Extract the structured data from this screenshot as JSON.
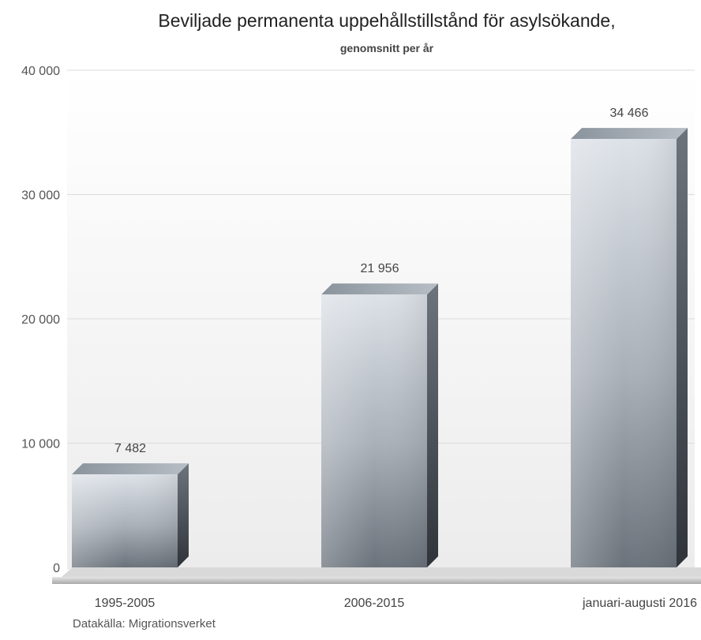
{
  "chart_data": {
    "type": "bar",
    "title": "Beviljade permanenta uppehållstillstånd för asylsökande,",
    "subtitle": "genomsnitt per år",
    "categories": [
      "1995-2005",
      "2006-2015",
      "januari-augusti 2016"
    ],
    "values": [
      7482,
      21956,
      34466
    ],
    "value_labels": [
      "7 482",
      "21 956",
      "34 466"
    ],
    "ylim": [
      0,
      40000
    ],
    "yticks": [
      0,
      10000,
      20000,
      30000,
      40000
    ],
    "ytick_labels": [
      "0",
      "10 000",
      "20 000",
      "30 000",
      "40 000"
    ],
    "grid": true,
    "legend": "none",
    "style": "3d-bar",
    "colors": {
      "bar_top": "#dfe3e9",
      "bar_bottom": "#6b737c",
      "bar_side": "#3f454c",
      "grid": "#dcdcdc"
    },
    "source": "Datakälla: Migrationsverket"
  }
}
